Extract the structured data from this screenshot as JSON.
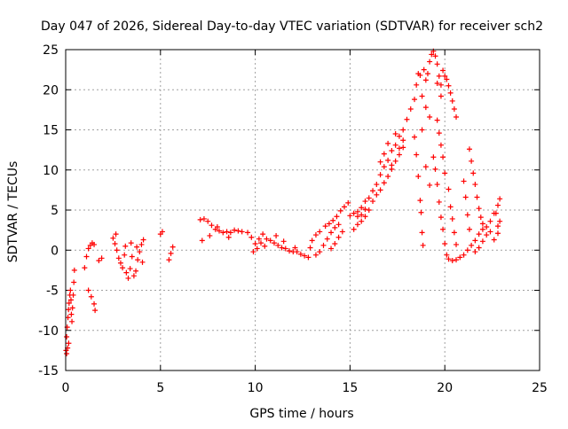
{
  "chart_data": {
    "type": "scatter",
    "title": "Day 047 of 2026, Sidereal Day-to-day VTEC variation (SDTVAR) for receiver sch2",
    "xlabel": "GPS time / hours",
    "ylabel": "SDTVAR / TECUs",
    "xlim": [
      0,
      25
    ],
    "ylim": [
      -15,
      25
    ],
    "xticks": [
      0,
      5,
      10,
      15,
      20,
      25
    ],
    "yticks": [
      -15,
      -10,
      -5,
      0,
      5,
      10,
      15,
      20,
      25
    ],
    "grid": true,
    "marker": "+",
    "color": "#ff0000",
    "series": [
      {
        "name": "SDTVAR",
        "values": [
          [
            0.02,
            -12.5
          ],
          [
            0.05,
            -10.8
          ],
          [
            0.08,
            -9.6
          ],
          [
            0.12,
            -8.4
          ],
          [
            0.15,
            -7.4
          ],
          [
            0.18,
            -6.6
          ],
          [
            0.22,
            -5.6
          ],
          [
            0.25,
            -5.0
          ],
          [
            0.28,
            -6.2
          ],
          [
            0.3,
            -8.0
          ],
          [
            0.33,
            -8.9
          ],
          [
            0.36,
            -7.2
          ],
          [
            0.4,
            -5.6
          ],
          [
            0.43,
            -4.0
          ],
          [
            0.46,
            -2.5
          ],
          [
            0.05,
            -12.9
          ],
          [
            0.1,
            -12.2
          ],
          [
            0.16,
            -11.6
          ],
          [
            1.0,
            -2.2
          ],
          [
            1.1,
            -0.8
          ],
          [
            1.2,
            0.2
          ],
          [
            1.3,
            0.6
          ],
          [
            1.4,
            0.9
          ],
          [
            1.5,
            0.7
          ],
          [
            1.2,
            -5.0
          ],
          [
            1.35,
            -5.8
          ],
          [
            1.5,
            -6.7
          ],
          [
            1.55,
            -7.5
          ],
          [
            1.75,
            -1.3
          ],
          [
            1.9,
            -1.0
          ],
          [
            2.5,
            1.5
          ],
          [
            2.6,
            0.8
          ],
          [
            2.7,
            0.0
          ],
          [
            2.8,
            -1.0
          ],
          [
            2.9,
            -1.6
          ],
          [
            3.0,
            -2.2
          ],
          [
            3.1,
            -0.6
          ],
          [
            3.2,
            -2.8
          ],
          [
            3.3,
            -3.5
          ],
          [
            3.4,
            -2.3
          ],
          [
            3.5,
            -0.8
          ],
          [
            3.6,
            -3.2
          ],
          [
            3.7,
            -2.6
          ],
          [
            3.8,
            -1.2
          ],
          [
            3.9,
            -0.2
          ],
          [
            4.0,
            0.7
          ],
          [
            4.1,
            1.3
          ],
          [
            4.05,
            -1.5
          ],
          [
            3.15,
            0.5
          ],
          [
            3.45,
            0.9
          ],
          [
            2.65,
            2.0
          ],
          [
            3.75,
            0.4
          ],
          [
            5.0,
            2.0
          ],
          [
            5.1,
            2.3
          ],
          [
            5.45,
            -1.2
          ],
          [
            5.55,
            -0.4
          ],
          [
            5.65,
            0.4
          ],
          [
            7.1,
            3.8
          ],
          [
            7.3,
            3.9
          ],
          [
            7.5,
            3.6
          ],
          [
            7.7,
            3.1
          ],
          [
            7.9,
            2.6
          ],
          [
            8.1,
            2.4
          ],
          [
            8.3,
            2.2
          ],
          [
            8.5,
            2.3
          ],
          [
            8.7,
            2.2
          ],
          [
            8.9,
            2.5
          ],
          [
            9.1,
            2.4
          ],
          [
            9.3,
            2.3
          ],
          [
            7.2,
            1.2
          ],
          [
            7.6,
            1.8
          ],
          [
            8.0,
            2.9
          ],
          [
            8.6,
            1.6
          ],
          [
            9.6,
            2.2
          ],
          [
            9.8,
            1.6
          ],
          [
            10.0,
            0.8
          ],
          [
            10.2,
            1.4
          ],
          [
            10.4,
            2.0
          ],
          [
            10.6,
            1.4
          ],
          [
            10.8,
            1.2
          ],
          [
            11.0,
            0.9
          ],
          [
            11.2,
            0.6
          ],
          [
            11.4,
            0.3
          ],
          [
            11.6,
            0.2
          ],
          [
            11.8,
            -0.1
          ],
          [
            12.0,
            -0.2
          ],
          [
            12.2,
            -0.2
          ],
          [
            12.4,
            -0.5
          ],
          [
            12.6,
            -0.7
          ],
          [
            12.8,
            -0.9
          ],
          [
            9.9,
            -0.2
          ],
          [
            10.1,
            0.2
          ],
          [
            10.3,
            0.9
          ],
          [
            10.5,
            0.5
          ],
          [
            11.1,
            1.8
          ],
          [
            11.5,
            1.1
          ],
          [
            12.1,
            0.3
          ],
          [
            12.9,
            0.3
          ],
          [
            13.0,
            1.2
          ],
          [
            13.2,
            1.9
          ],
          [
            13.4,
            2.3
          ],
          [
            13.2,
            -0.6
          ],
          [
            13.4,
            -0.2
          ],
          [
            13.6,
            0.6
          ],
          [
            13.8,
            1.4
          ],
          [
            14.0,
            2.2
          ],
          [
            14.2,
            2.8
          ],
          [
            14.4,
            3.2
          ],
          [
            13.7,
            3.0
          ],
          [
            13.9,
            3.3
          ],
          [
            14.1,
            3.7
          ],
          [
            14.3,
            4.2
          ],
          [
            14.5,
            4.9
          ],
          [
            14.7,
            5.4
          ],
          [
            14.9,
            5.9
          ],
          [
            14.0,
            0.2
          ],
          [
            14.2,
            0.8
          ],
          [
            14.4,
            1.6
          ],
          [
            14.6,
            2.3
          ],
          [
            15.0,
            4.3
          ],
          [
            15.2,
            4.6
          ],
          [
            15.4,
            4.2
          ],
          [
            15.6,
            4.4
          ],
          [
            15.8,
            5.1
          ],
          [
            15.4,
            4.8
          ],
          [
            15.6,
            5.3
          ],
          [
            15.8,
            6.1
          ],
          [
            16.0,
            6.5
          ],
          [
            16.2,
            7.4
          ],
          [
            16.4,
            8.2
          ],
          [
            16.6,
            9.4
          ],
          [
            16.8,
            10.4
          ],
          [
            17.0,
            11.2
          ],
          [
            17.2,
            12.4
          ],
          [
            17.4,
            13.1
          ],
          [
            17.6,
            14.2
          ],
          [
            17.8,
            15.0
          ],
          [
            18.0,
            16.3
          ],
          [
            18.2,
            17.6
          ],
          [
            15.2,
            2.6
          ],
          [
            15.4,
            3.2
          ],
          [
            15.6,
            3.6
          ],
          [
            15.8,
            4.2
          ],
          [
            16.0,
            5.0
          ],
          [
            16.2,
            6.1
          ],
          [
            16.4,
            6.9
          ],
          [
            16.6,
            7.5
          ],
          [
            16.8,
            8.4
          ],
          [
            17.0,
            9.2
          ],
          [
            17.2,
            10.1
          ],
          [
            17.4,
            11.1
          ],
          [
            17.6,
            11.9
          ],
          [
            17.8,
            12.8
          ],
          [
            16.8,
            12.0
          ],
          [
            17.0,
            13.3
          ],
          [
            16.6,
            11.0
          ],
          [
            17.2,
            10.6
          ],
          [
            17.6,
            12.7
          ],
          [
            17.4,
            14.5
          ],
          [
            17.8,
            13.7
          ],
          [
            18.4,
            18.8
          ],
          [
            18.5,
            20.6
          ],
          [
            18.6,
            22.0
          ],
          [
            18.7,
            21.8
          ],
          [
            18.8,
            19.2
          ],
          [
            18.9,
            22.5
          ],
          [
            19.0,
            21.2
          ],
          [
            19.1,
            22.0
          ],
          [
            19.2,
            23.5
          ],
          [
            19.3,
            24.4
          ],
          [
            19.4,
            24.8
          ],
          [
            19.5,
            24.2
          ],
          [
            19.6,
            23.2
          ],
          [
            19.7,
            21.7
          ],
          [
            19.8,
            20.6
          ],
          [
            19.9,
            22.4
          ],
          [
            20.0,
            21.7
          ],
          [
            20.1,
            21.3
          ],
          [
            20.2,
            20.5
          ],
          [
            20.3,
            19.6
          ],
          [
            20.4,
            18.6
          ],
          [
            20.5,
            17.6
          ],
          [
            20.6,
            16.6
          ],
          [
            19.0,
            17.8
          ],
          [
            19.2,
            16.6
          ],
          [
            18.8,
            15.0
          ],
          [
            19.6,
            20.8
          ],
          [
            19.8,
            19.2
          ],
          [
            18.4,
            14.1
          ],
          [
            18.5,
            11.9
          ],
          [
            18.6,
            9.2
          ],
          [
            18.7,
            6.2
          ],
          [
            18.75,
            4.7
          ],
          [
            18.8,
            2.2
          ],
          [
            18.85,
            0.6
          ],
          [
            19.0,
            10.4
          ],
          [
            19.2,
            8.1
          ],
          [
            19.4,
            11.6
          ],
          [
            19.5,
            10.1
          ],
          [
            19.6,
            8.2
          ],
          [
            19.7,
            6.0
          ],
          [
            19.8,
            4.1
          ],
          [
            19.9,
            2.6
          ],
          [
            20.0,
            0.8
          ],
          [
            20.1,
            -0.6
          ],
          [
            19.6,
            16.2
          ],
          [
            19.7,
            14.6
          ],
          [
            19.8,
            13.1
          ],
          [
            19.9,
            11.6
          ],
          [
            20.0,
            9.6
          ],
          [
            20.2,
            7.6
          ],
          [
            20.3,
            5.4
          ],
          [
            20.4,
            3.9
          ],
          [
            20.5,
            2.2
          ],
          [
            20.6,
            0.7
          ],
          [
            20.2,
            -1.1
          ],
          [
            20.4,
            -1.3
          ],
          [
            20.6,
            -1.2
          ],
          [
            20.8,
            -0.9
          ],
          [
            21.0,
            -0.6
          ],
          [
            21.2,
            0.0
          ],
          [
            21.4,
            0.6
          ],
          [
            21.6,
            1.2
          ],
          [
            21.8,
            2.0
          ],
          [
            22.0,
            2.6
          ],
          [
            22.2,
            2.9
          ],
          [
            22.4,
            2.3
          ],
          [
            22.6,
            1.3
          ],
          [
            22.8,
            2.1
          ],
          [
            22.9,
            3.6
          ],
          [
            21.6,
            -0.2
          ],
          [
            21.8,
            0.3
          ],
          [
            22.0,
            1.1
          ],
          [
            22.2,
            1.9
          ],
          [
            22.4,
            3.6
          ],
          [
            22.6,
            4.6
          ],
          [
            22.8,
            5.6
          ],
          [
            22.9,
            6.4
          ],
          [
            21.3,
            12.6
          ],
          [
            21.4,
            11.1
          ],
          [
            21.5,
            9.6
          ],
          [
            21.6,
            8.2
          ],
          [
            21.7,
            6.6
          ],
          [
            21.8,
            5.2
          ],
          [
            21.9,
            4.1
          ],
          [
            22.0,
            3.3
          ],
          [
            21.0,
            8.6
          ],
          [
            21.1,
            6.6
          ],
          [
            21.2,
            4.4
          ],
          [
            21.3,
            2.6
          ],
          [
            22.7,
            4.6
          ],
          [
            22.8,
            3.0
          ]
        ]
      }
    ]
  }
}
